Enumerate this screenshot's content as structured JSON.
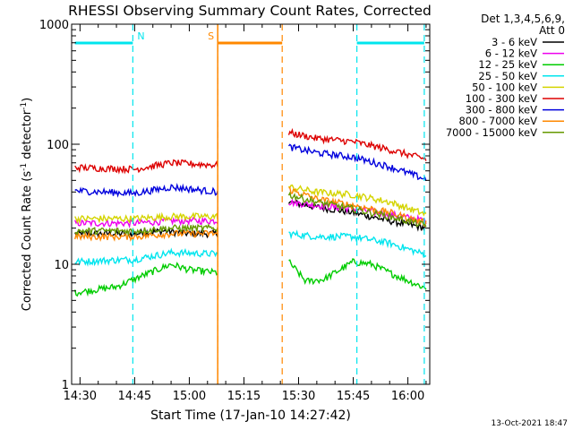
{
  "chart_data": {
    "type": "line",
    "title": "RHESSI Observing Summary Count Rates, Corrected",
    "xlabel": "Start Time (17-Jan-10 14:27:42)",
    "ylabel_parts": {
      "main": "Corrected Count Rate (s",
      "sup1": "-1",
      "mid": " detector",
      "sup2": "-1",
      "end": ")"
    },
    "yscale": "log",
    "ylim": [
      1,
      1000
    ],
    "xlim_min": [
      867.7,
      966
    ],
    "x_tick_minutes": [
      870,
      885,
      900,
      915,
      930,
      945,
      960
    ],
    "x_tick_labels": [
      "14:30",
      "14:45",
      "15:00",
      "15:15",
      "15:30",
      "15:45",
      "16:00"
    ],
    "y_tick_values": [
      1,
      10,
      100,
      1000
    ],
    "y_tick_labels": [
      "1",
      "10",
      "100",
      "1000"
    ],
    "legend_header": [
      "Det 1,3,4,5,6,9,",
      "Att 0"
    ],
    "timestamp": "13-Oct-2021 18:47",
    "segments": [
      [
        868.6,
        907.8
      ],
      [
        927.3,
        965.0
      ]
    ],
    "series": [
      {
        "name": "3 - 6 keV",
        "color": "#000000",
        "seg1": [
          [
            868.6,
            18
          ],
          [
            885,
            18
          ],
          [
            893,
            19
          ],
          [
            900,
            18
          ],
          [
            907.8,
            18
          ]
        ],
        "seg2": [
          [
            927.3,
            33
          ],
          [
            935,
            30
          ],
          [
            945,
            27
          ],
          [
            955,
            23
          ],
          [
            965,
            20
          ]
        ]
      },
      {
        "name": "6 - 12 keV",
        "color": "#ee00ee",
        "seg1": [
          [
            868.6,
            22
          ],
          [
            885,
            22
          ],
          [
            895,
            23
          ],
          [
            907.8,
            23
          ]
        ],
        "seg2": [
          [
            927.3,
            33
          ],
          [
            935,
            31
          ],
          [
            945,
            29
          ],
          [
            955,
            26
          ],
          [
            965,
            23
          ]
        ]
      },
      {
        "name": "12 - 25 keV",
        "color": "#00cc00",
        "seg1": [
          [
            868.6,
            5.8
          ],
          [
            880,
            6.5
          ],
          [
            887,
            8.0
          ],
          [
            895,
            10.0
          ],
          [
            900,
            9.0
          ],
          [
            907.8,
            8.5
          ]
        ],
        "seg2": [
          [
            927.3,
            10.5
          ],
          [
            932,
            7.2
          ],
          [
            937,
            7.5
          ],
          [
            945,
            10.5
          ],
          [
            950,
            10.0
          ],
          [
            955,
            8.5
          ],
          [
            965,
            6.3
          ]
        ]
      },
      {
        "name": "25 - 50 keV",
        "color": "#00e5ee",
        "seg1": [
          [
            868.6,
            10.5
          ],
          [
            885,
            11
          ],
          [
            895,
            12.5
          ],
          [
            907.8,
            12.2
          ]
        ],
        "seg2": [
          [
            927.3,
            18
          ],
          [
            935,
            17
          ],
          [
            945,
            17
          ],
          [
            955,
            15
          ],
          [
            965,
            12
          ]
        ]
      },
      {
        "name": "50 - 100 keV",
        "color": "#d4d400",
        "seg1": [
          [
            868.6,
            24
          ],
          [
            885,
            24
          ],
          [
            895,
            25
          ],
          [
            907.8,
            25
          ]
        ],
        "seg2": [
          [
            927.3,
            44
          ],
          [
            935,
            40
          ],
          [
            945,
            38
          ],
          [
            955,
            33
          ],
          [
            965,
            26
          ]
        ]
      },
      {
        "name": "100 - 300 keV",
        "color": "#dd0000",
        "seg1": [
          [
            868.6,
            64
          ],
          [
            885,
            62
          ],
          [
            895,
            70
          ],
          [
            907.8,
            67
          ]
        ],
        "seg2": [
          [
            927.3,
            125
          ],
          [
            935,
            112
          ],
          [
            945,
            105
          ],
          [
            955,
            90
          ],
          [
            965,
            75
          ]
        ]
      },
      {
        "name": "300 - 800 keV",
        "color": "#0000dd",
        "seg1": [
          [
            868.6,
            41
          ],
          [
            885,
            39
          ],
          [
            895,
            44
          ],
          [
            907.8,
            40
          ]
        ],
        "seg2": [
          [
            927.3,
            95
          ],
          [
            935,
            85
          ],
          [
            945,
            78
          ],
          [
            955,
            65
          ],
          [
            965,
            51
          ]
        ]
      },
      {
        "name": "800 - 7000 keV",
        "color": "#ff8800",
        "seg1": [
          [
            868.6,
            17
          ],
          [
            885,
            17
          ],
          [
            895,
            18
          ],
          [
            907.8,
            18
          ]
        ],
        "seg2": [
          [
            927.3,
            42
          ],
          [
            935,
            35
          ],
          [
            945,
            31
          ],
          [
            955,
            27
          ],
          [
            965,
            22
          ]
        ]
      },
      {
        "name": "7000 - 15000 keV",
        "color": "#669900",
        "seg1": [
          [
            868.6,
            19
          ],
          [
            885,
            19
          ],
          [
            895,
            20
          ],
          [
            907.8,
            20
          ]
        ],
        "seg2": [
          [
            927.3,
            38
          ],
          [
            935,
            33
          ],
          [
            945,
            29
          ],
          [
            955,
            25
          ],
          [
            965,
            21
          ]
        ]
      }
    ],
    "flags": [
      {
        "label": "N",
        "color": "#00e5ee",
        "bar": [
          868.6,
          884.5
        ],
        "dashes": [
          884.5
        ]
      },
      {
        "label": "S",
        "color": "#ff8800",
        "bar": [
          907.8,
          925.5
        ],
        "dashes": [
          907.8,
          925.5
        ]
      },
      {
        "label": "",
        "color": "#00e5ee",
        "bar": [
          946.0,
          964.5
        ],
        "dashes": [
          946.0,
          964.5
        ]
      }
    ]
  }
}
